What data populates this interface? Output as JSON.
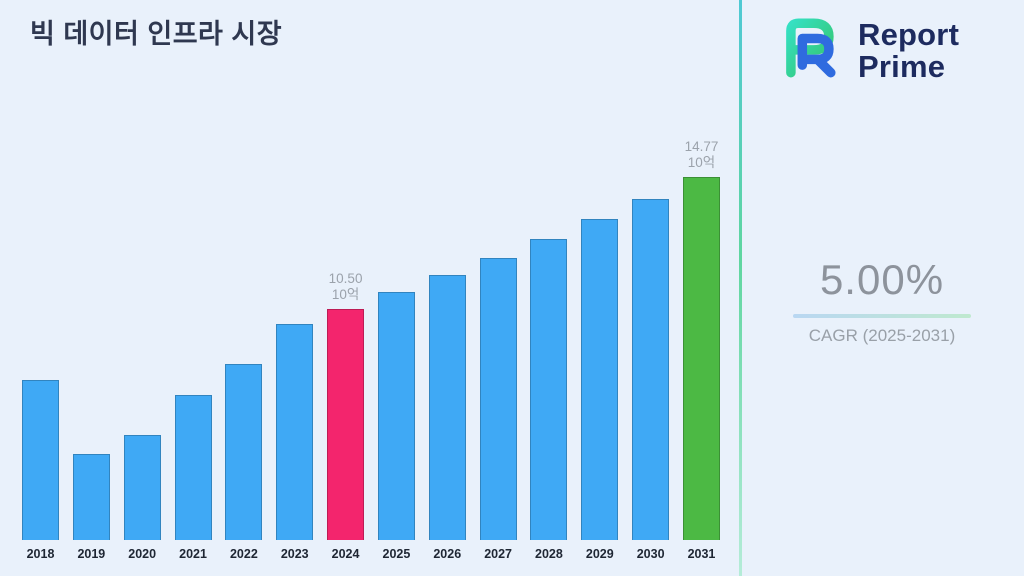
{
  "page": {
    "background_color": "#e9f1fb",
    "divider_gradient": [
      "#4fc9d4",
      "#5fd6a0",
      "#b5ecd8"
    ]
  },
  "header": {
    "title": "빅 데이터 인프라 시장"
  },
  "brand": {
    "logo_icon": "report-prime-logo",
    "name_top": "Report",
    "name_bottom": "Prime",
    "name_color": "#1d2b5f",
    "logo_blue": "#2f6bdf",
    "logo_teal": "#35e0c2",
    "logo_green": "#35c46a"
  },
  "cagr": {
    "value": "5.00%",
    "label": "CAGR (2025-2031)",
    "underline_gradient": [
      "#b9d7f2",
      "#bfe9cf"
    ]
  },
  "chart_data": {
    "type": "bar",
    "title": "빅 데이터 인프라 시장",
    "xlabel": "",
    "ylabel": "",
    "unit": "10억",
    "ylim": [
      3,
      15
    ],
    "grid": false,
    "legend": false,
    "categories": [
      "2018",
      "2019",
      "2020",
      "2021",
      "2022",
      "2023",
      "2024",
      "2025",
      "2026",
      "2027",
      "2028",
      "2029",
      "2030",
      "2031"
    ],
    "values": [
      8.2,
      5.8,
      6.4,
      7.7,
      8.7,
      10.0,
      10.5,
      11.03,
      11.58,
      12.16,
      12.76,
      13.4,
      14.07,
      14.77
    ],
    "colors": {
      "default": "#3fa9f5",
      "2024": "#f3256d",
      "2031": "#4cb944"
    },
    "annotations": [
      {
        "category": "2024",
        "value_label": "10.50",
        "unit_label": "10억"
      },
      {
        "category": "2031",
        "value_label": "14.77",
        "unit_label": "10억"
      }
    ]
  }
}
